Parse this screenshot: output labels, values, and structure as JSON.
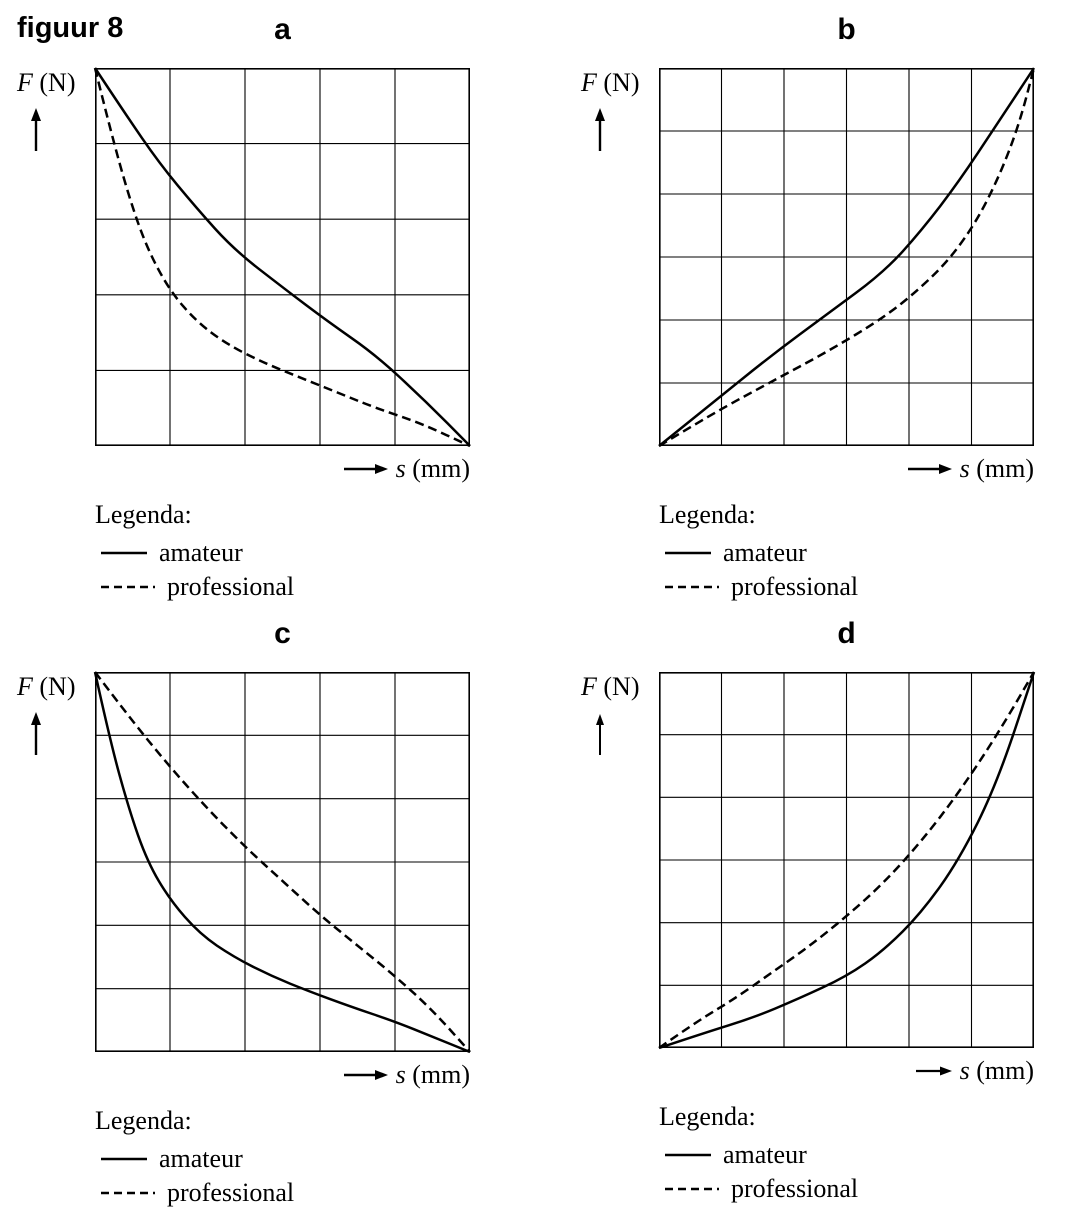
{
  "figure_label": "figuur 8",
  "legend": {
    "title": "Legenda:",
    "items": [
      {
        "label": "amateur",
        "style": "solid"
      },
      {
        "label": "professional",
        "style": "dashed"
      }
    ]
  },
  "chart_data": [
    {
      "id": "a",
      "title": "a",
      "type": "line",
      "xlabel": "s (mm)",
      "ylabel": "F (N)",
      "xlabel_var": "s",
      "xlabel_unit": "(mm)",
      "ylabel_var": "F",
      "ylabel_unit": "(N)",
      "x_range": [
        0,
        1
      ],
      "y_range": [
        0,
        1
      ],
      "axis_tick_labels": "none (unlabeled grid)",
      "grid": {
        "cols": 5,
        "rows": 5,
        "shown": true
      },
      "legend_position": "below",
      "series": [
        {
          "name": "amateur",
          "style": "solid",
          "points": [
            [
              0,
              1
            ],
            [
              0.08,
              0.88
            ],
            [
              0.17,
              0.75
            ],
            [
              0.27,
              0.63
            ],
            [
              0.37,
              0.52
            ],
            [
              0.5,
              0.42
            ],
            [
              0.62,
              0.33
            ],
            [
              0.75,
              0.24
            ],
            [
              0.88,
              0.12
            ],
            [
              1,
              0
            ]
          ]
        },
        {
          "name": "professional",
          "style": "dashed",
          "points": [
            [
              0,
              1
            ],
            [
              0.04,
              0.84
            ],
            [
              0.09,
              0.66
            ],
            [
              0.14,
              0.52
            ],
            [
              0.2,
              0.41
            ],
            [
              0.27,
              0.33
            ],
            [
              0.35,
              0.27
            ],
            [
              0.45,
              0.22
            ],
            [
              0.55,
              0.18
            ],
            [
              0.65,
              0.14
            ],
            [
              0.75,
              0.1
            ],
            [
              0.87,
              0.06
            ],
            [
              1,
              0
            ]
          ]
        }
      ]
    },
    {
      "id": "b",
      "title": "b",
      "type": "line",
      "xlabel": "s (mm)",
      "ylabel": "F (N)",
      "xlabel_var": "s",
      "xlabel_unit": "(mm)",
      "ylabel_var": "F",
      "ylabel_unit": "(N)",
      "x_range": [
        0,
        1
      ],
      "y_range": [
        0,
        1
      ],
      "axis_tick_labels": "none (unlabeled grid)",
      "grid": {
        "cols": 6,
        "rows": 6,
        "shown": true
      },
      "legend_position": "below",
      "series": [
        {
          "name": "amateur",
          "style": "solid",
          "points": [
            [
              0,
              0
            ],
            [
              0.15,
              0.12
            ],
            [
              0.3,
              0.24
            ],
            [
              0.45,
              0.35
            ],
            [
              0.6,
              0.46
            ],
            [
              0.7,
              0.57
            ],
            [
              0.8,
              0.7
            ],
            [
              0.9,
              0.85
            ],
            [
              1,
              1
            ]
          ]
        },
        {
          "name": "professional",
          "style": "dashed",
          "points": [
            [
              0,
              0
            ],
            [
              0.15,
              0.09
            ],
            [
              0.3,
              0.17
            ],
            [
              0.45,
              0.25
            ],
            [
              0.6,
              0.34
            ],
            [
              0.7,
              0.42
            ],
            [
              0.78,
              0.5
            ],
            [
              0.85,
              0.6
            ],
            [
              0.91,
              0.72
            ],
            [
              0.96,
              0.85
            ],
            [
              1,
              1
            ]
          ]
        }
      ]
    },
    {
      "id": "c",
      "title": "c",
      "type": "line",
      "xlabel": "s (mm)",
      "ylabel": "F (N)",
      "xlabel_var": "s",
      "xlabel_unit": "(mm)",
      "ylabel_var": "F",
      "ylabel_unit": "(N)",
      "x_range": [
        0,
        1
      ],
      "y_range": [
        0,
        1
      ],
      "axis_tick_labels": "none (unlabeled grid)",
      "grid": {
        "cols": 5,
        "rows": 6,
        "shown": true
      },
      "legend_position": "below",
      "series": [
        {
          "name": "amateur",
          "style": "solid",
          "points": [
            [
              0,
              1
            ],
            [
              0.04,
              0.82
            ],
            [
              0.09,
              0.64
            ],
            [
              0.14,
              0.5
            ],
            [
              0.2,
              0.4
            ],
            [
              0.28,
              0.31
            ],
            [
              0.37,
              0.25
            ],
            [
              0.47,
              0.2
            ],
            [
              0.57,
              0.16
            ],
            [
              0.68,
              0.12
            ],
            [
              0.8,
              0.08
            ],
            [
              0.9,
              0.04
            ],
            [
              1,
              0
            ]
          ]
        },
        {
          "name": "professional",
          "style": "dashed",
          "points": [
            [
              0,
              1
            ],
            [
              0.1,
              0.87
            ],
            [
              0.2,
              0.75
            ],
            [
              0.3,
              0.64
            ],
            [
              0.4,
              0.54
            ],
            [
              0.5,
              0.45
            ],
            [
              0.6,
              0.36
            ],
            [
              0.7,
              0.28
            ],
            [
              0.8,
              0.2
            ],
            [
              0.9,
              0.11
            ],
            [
              1,
              0
            ]
          ]
        }
      ]
    },
    {
      "id": "d",
      "title": "d",
      "type": "line",
      "xlabel": "s (mm)",
      "ylabel": "F (N)",
      "xlabel_var": "s",
      "xlabel_unit": "(mm)",
      "ylabel_var": "F",
      "ylabel_unit": "(N)",
      "x_range": [
        0,
        1
      ],
      "y_range": [
        0,
        1
      ],
      "axis_tick_labels": "none (unlabeled grid)",
      "grid": {
        "cols": 6,
        "rows": 6,
        "shown": true
      },
      "legend_position": "below",
      "series": [
        {
          "name": "amateur",
          "style": "solid",
          "points": [
            [
              0,
              0
            ],
            [
              0.12,
              0.04
            ],
            [
              0.25,
              0.08
            ],
            [
              0.37,
              0.13
            ],
            [
              0.5,
              0.19
            ],
            [
              0.6,
              0.26
            ],
            [
              0.7,
              0.36
            ],
            [
              0.8,
              0.5
            ],
            [
              0.9,
              0.7
            ],
            [
              1,
              1
            ]
          ]
        },
        {
          "name": "professional",
          "style": "dashed",
          "points": [
            [
              0,
              0
            ],
            [
              0.1,
              0.07
            ],
            [
              0.2,
              0.13
            ],
            [
              0.3,
              0.2
            ],
            [
              0.4,
              0.27
            ],
            [
              0.5,
              0.35
            ],
            [
              0.6,
              0.44
            ],
            [
              0.7,
              0.55
            ],
            [
              0.8,
              0.68
            ],
            [
              0.9,
              0.83
            ],
            [
              1,
              1
            ]
          ]
        }
      ]
    }
  ]
}
